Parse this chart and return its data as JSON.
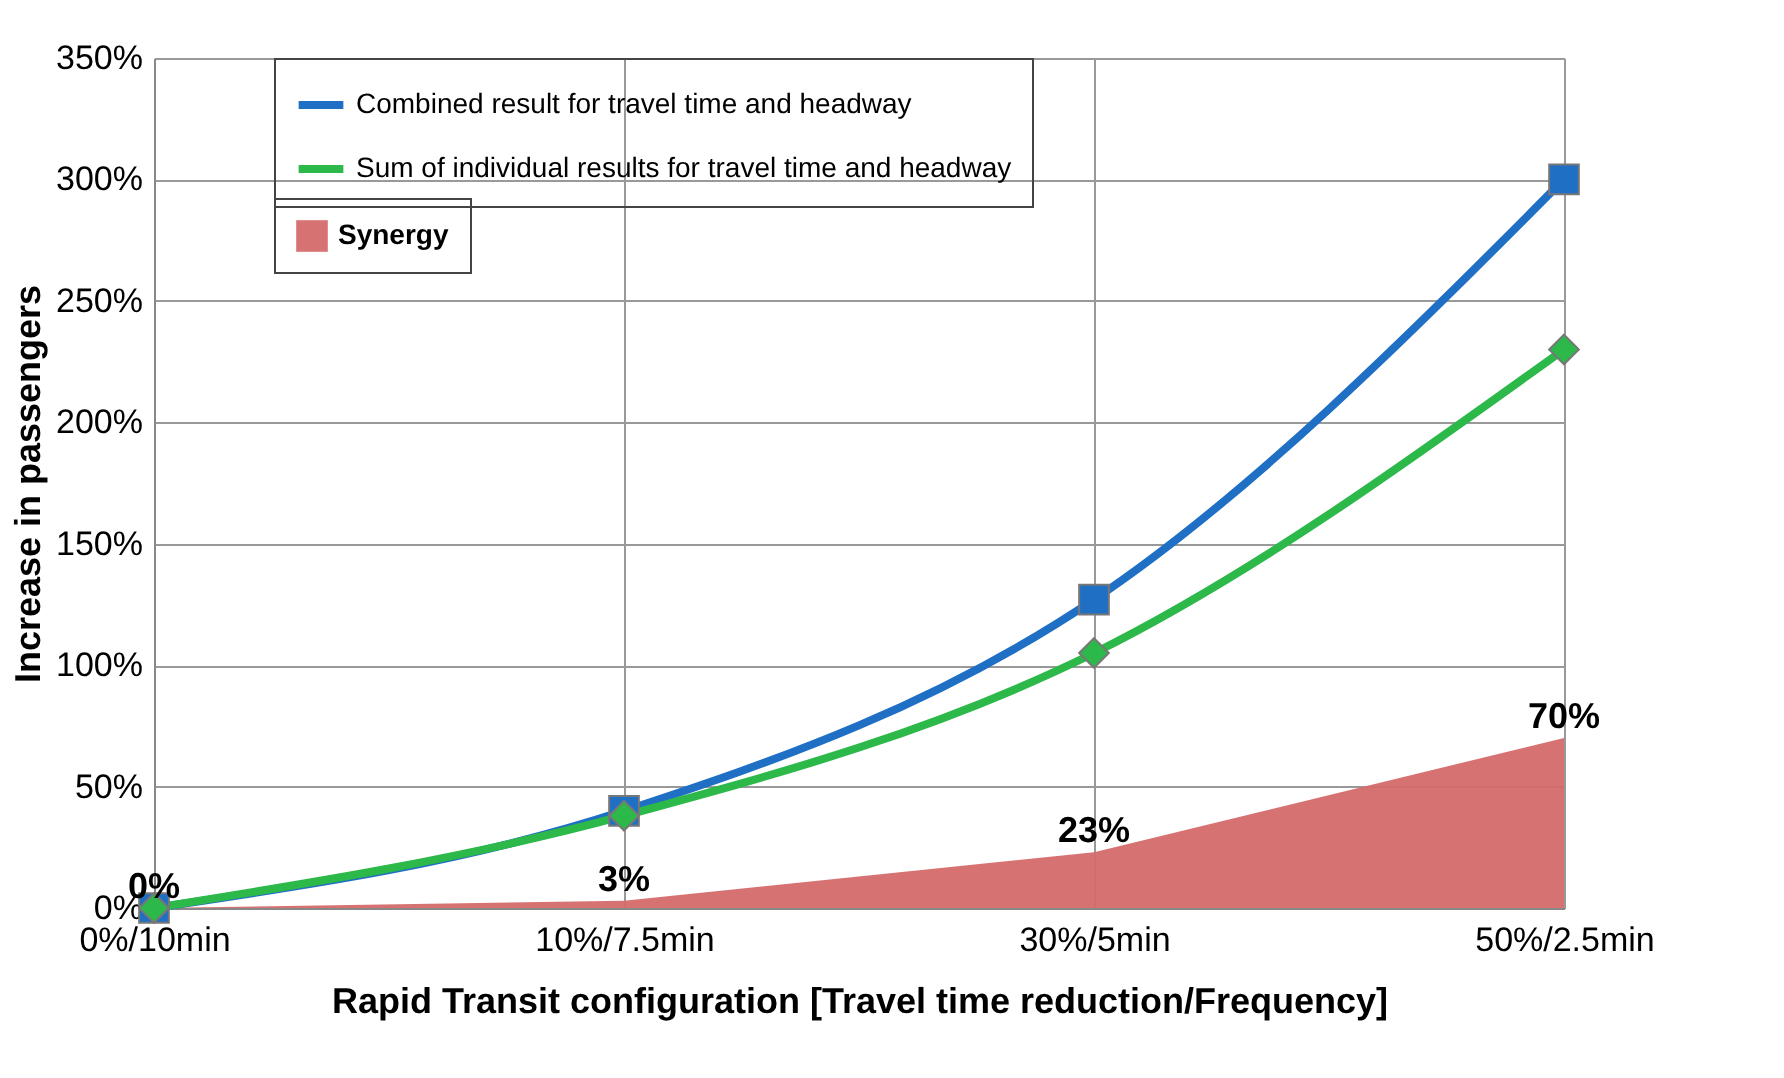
{
  "chart_data": {
    "type": "line",
    "xlabel": "Rapid Transit configuration [Travel time reduction/Frequency]",
    "ylabel": "Increase in passengers",
    "categories": [
      "0%/10min",
      "10%/7.5min",
      "30%/5min",
      "50%/2.5min"
    ],
    "series": [
      {
        "name": "Combined result for travel time and headway",
        "color": "#1f6fc5",
        "marker": "square",
        "values": [
          0,
          40,
          127,
          300
        ]
      },
      {
        "name": "Sum of individual results for travel time and headway",
        "color": "#2db84a",
        "marker": "diamond",
        "values": [
          0,
          38,
          105,
          230
        ]
      },
      {
        "name": "Synergy",
        "type": "area",
        "color": "#d56a6a",
        "values": [
          0,
          3,
          23,
          70
        ],
        "value_labels": [
          "0%",
          "3%",
          "23%",
          "70%"
        ]
      }
    ],
    "ylim": [
      0,
      350
    ],
    "yticks": [
      {
        "value": 0,
        "label": "0%"
      },
      {
        "value": 50,
        "label": "50%"
      },
      {
        "value": 100,
        "label": "100%"
      },
      {
        "value": 150,
        "label": "150%"
      },
      {
        "value": 200,
        "label": "200%"
      },
      {
        "value": 250,
        "label": "250%"
      },
      {
        "value": 300,
        "label": "300%"
      },
      {
        "value": 350,
        "label": "350%"
      }
    ],
    "grid": true,
    "legend": "top"
  }
}
